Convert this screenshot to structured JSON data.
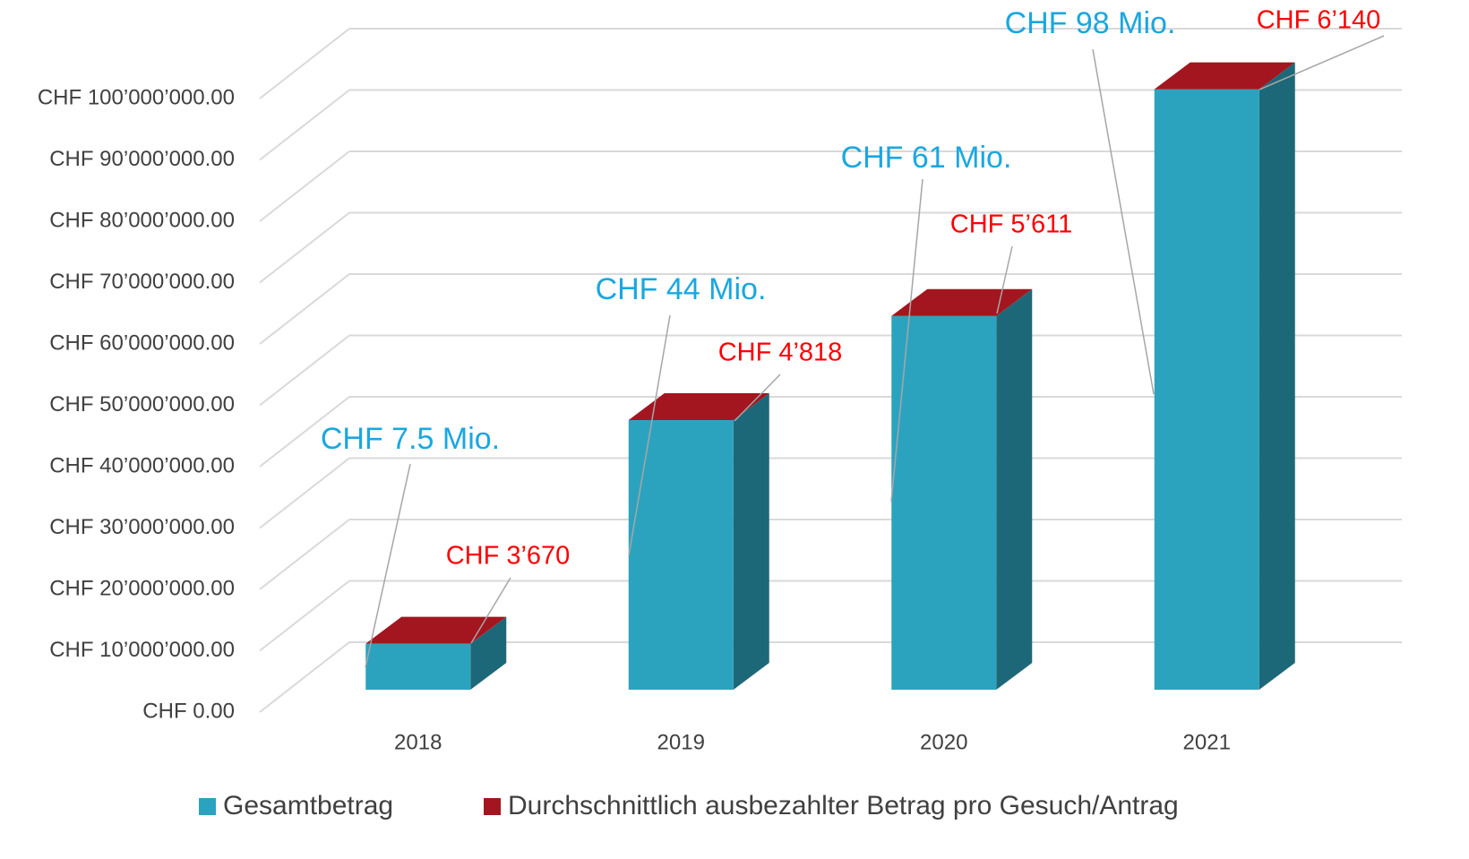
{
  "chart_data": {
    "type": "bar3d_stacked",
    "categories": [
      "2018",
      "2019",
      "2020",
      "2021"
    ],
    "series": [
      {
        "name": "Gesamtbetrag",
        "color": "#2ba3bf",
        "values": [
          7500000,
          44000000,
          61000000,
          98000000
        ],
        "value_labels": [
          "CHF 7.5 Mio.",
          "CHF 44 Mio.",
          "CHF 61 Mio.",
          "CHF 98 Mio."
        ]
      },
      {
        "name": "Durchschnittlich ausbezahlter Betrag pro Gesuch/Antrag",
        "color": "#a3161f",
        "values": [
          3670,
          4818,
          5611,
          6140
        ],
        "value_labels": [
          "CHF 3’670",
          "CHF 4’818",
          "CHF 5’611",
          "CHF 6’140"
        ]
      }
    ],
    "ylim": [
      0,
      100000000
    ],
    "yticks": [
      {
        "value": 0,
        "label": "CHF 0.00"
      },
      {
        "value": 10000000,
        "label": "CHF 10’000’000.00"
      },
      {
        "value": 20000000,
        "label": "CHF 20’000’000.00"
      },
      {
        "value": 30000000,
        "label": "CHF 30’000’000.00"
      },
      {
        "value": 40000000,
        "label": "CHF 40’000’000.00"
      },
      {
        "value": 50000000,
        "label": "CHF 50’000’000.00"
      },
      {
        "value": 60000000,
        "label": "CHF 60’000’000.00"
      },
      {
        "value": 70000000,
        "label": "CHF 70’000’000.00"
      },
      {
        "value": 80000000,
        "label": "CHF 80’000’000.00"
      },
      {
        "value": 90000000,
        "label": "CHF 90’000’000.00"
      },
      {
        "value": 100000000,
        "label": "CHF 100’000’000.00"
      }
    ],
    "grid": true,
    "legend": "bottom"
  }
}
